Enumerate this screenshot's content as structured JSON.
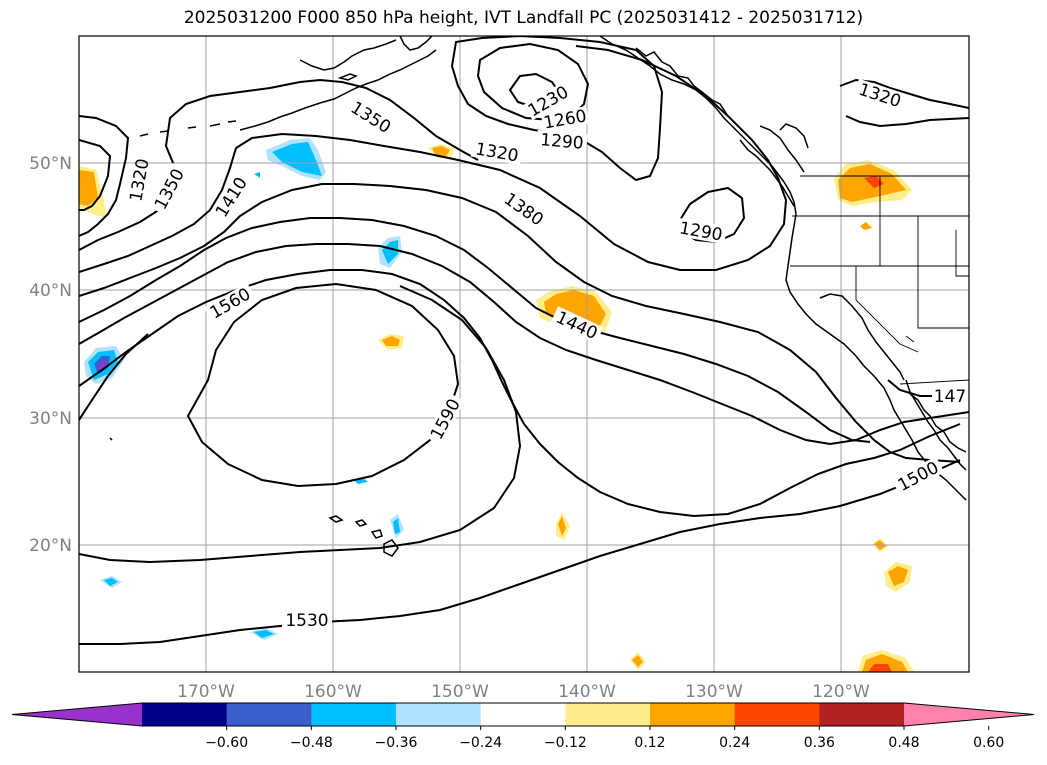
{
  "chart_data": {
    "type": "contour",
    "title": "2025031200 F000 850 hPa height, IVT Landfall PC (2025031412 - 2025031712)",
    "lon_ticks": [
      "170°W",
      "160°W",
      "150°W",
      "140°W",
      "130°W",
      "120°W"
    ],
    "lat_ticks": [
      "50°N",
      "40°N",
      "30°N",
      "20°N"
    ],
    "lon_range": [
      -180,
      -110
    ],
    "lat_range": [
      10,
      60
    ],
    "contour_labels": [
      "1230",
      "1260",
      "1290",
      "1290",
      "1320",
      "1320",
      "1320",
      "1350",
      "1350",
      "1380",
      "1410",
      "1440",
      "147",
      "1500",
      "1530",
      "1560",
      "1590"
    ],
    "colorbar": {
      "ticks": [
        "−0.60",
        "−0.48",
        "−0.36",
        "−0.24",
        "−0.12",
        "0.12",
        "0.24",
        "0.36",
        "0.48",
        "0.60"
      ],
      "colors": [
        "#9932cc",
        "#00008b",
        "#3a5fcd",
        "#00bfff",
        "#b0e2ff",
        "#ffffff",
        "#ffec8b",
        "#ffa500",
        "#ff4500",
        "#b22222",
        "#ff82ab"
      ],
      "extend": "both"
    }
  }
}
